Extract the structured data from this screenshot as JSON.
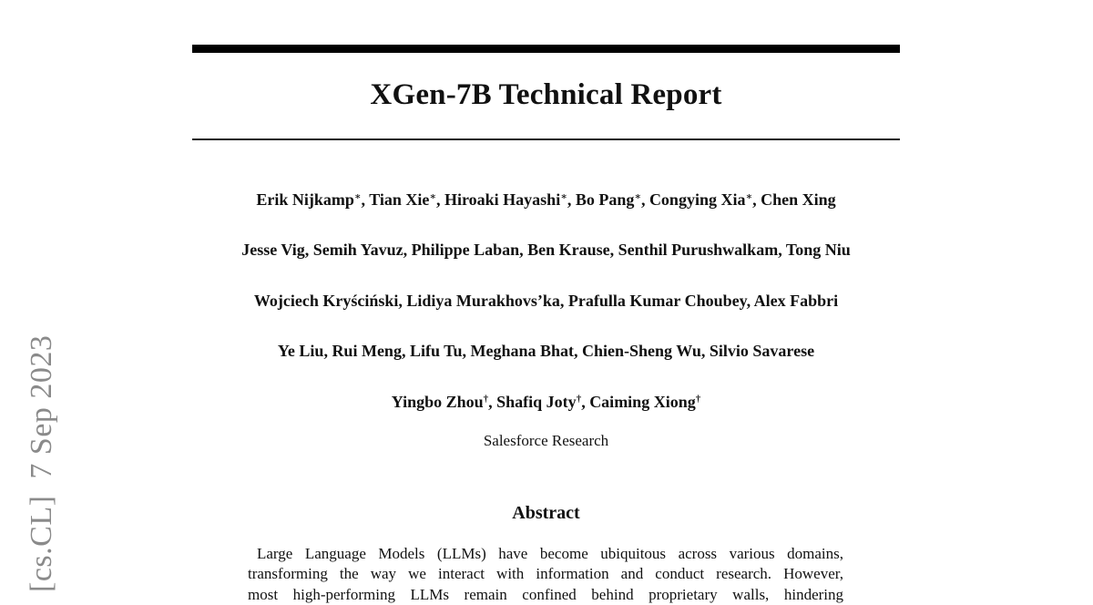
{
  "paper": {
    "title": "XGen-7B Technical Report",
    "affiliation": "Salesforce Research"
  },
  "authors": {
    "separator": ", ",
    "lines": [
      [
        {
          "name": "Erik Nijkamp",
          "sup": "∗"
        },
        {
          "name": "Tian Xie",
          "sup": "∗"
        },
        {
          "name": "Hiroaki Hayashi",
          "sup": "∗"
        },
        {
          "name": "Bo Pang",
          "sup": "∗"
        },
        {
          "name": "Congying Xia",
          "sup": "∗"
        },
        {
          "name": "Chen Xing",
          "sup": ""
        }
      ],
      [
        {
          "name": "Jesse Vig",
          "sup": ""
        },
        {
          "name": "Semih Yavuz",
          "sup": ""
        },
        {
          "name": "Philippe Laban",
          "sup": ""
        },
        {
          "name": "Ben Krause",
          "sup": ""
        },
        {
          "name": "Senthil Purushwalkam",
          "sup": ""
        },
        {
          "name": "Tong Niu",
          "sup": ""
        }
      ],
      [
        {
          "name": "Wojciech Kryściński",
          "sup": ""
        },
        {
          "name": "Lidiya Murakhovs’ka",
          "sup": ""
        },
        {
          "name": "Prafulla Kumar Choubey",
          "sup": ""
        },
        {
          "name": "Alex Fabbri",
          "sup": ""
        }
      ],
      [
        {
          "name": "Ye Liu",
          "sup": ""
        },
        {
          "name": "Rui Meng",
          "sup": ""
        },
        {
          "name": "Lifu Tu",
          "sup": ""
        },
        {
          "name": "Meghana Bhat",
          "sup": ""
        },
        {
          "name": "Chien-Sheng Wu",
          "sup": ""
        },
        {
          "name": "Silvio Savarese",
          "sup": ""
        }
      ],
      [
        {
          "name": "Yingbo Zhou",
          "sup": "†"
        },
        {
          "name": "Shafiq Joty",
          "sup": "†"
        },
        {
          "name": "Caiming Xiong",
          "sup": "†"
        }
      ]
    ]
  },
  "abstract": {
    "heading": "Abstract",
    "lines": [
      "Large Language Models (LLMs) have become ubiquitous across various domains,",
      "transforming the way we interact with information and conduct research. However,",
      "most high-performing LLMs remain confined behind proprietary walls, hindering"
    ]
  },
  "sidebar": {
    "arxiv_stamp": "[cs.CL]  7 Sep 2023"
  },
  "colors": {
    "text": "#111111",
    "rule": "#000000",
    "stamp": "#8a8a8a",
    "paper": "#ffffff"
  }
}
